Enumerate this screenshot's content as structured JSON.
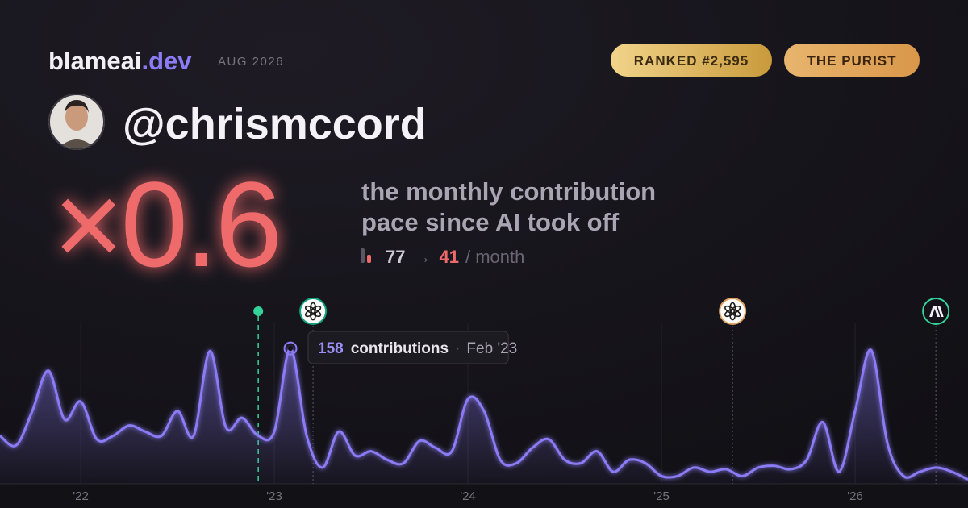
{
  "header": {
    "brand": "blameai",
    "brand_suffix": ".dev",
    "date": "AUG 2026",
    "badges": [
      "RANKED #2,595",
      "THE PURIST"
    ]
  },
  "profile": {
    "username": "@chrismccord"
  },
  "headline": {
    "multiplier": "×0.6",
    "description_lines": [
      "the monthly contribution",
      "pace since AI took off"
    ],
    "before": 77,
    "arrow": "→",
    "after": 41,
    "unit": "/ month"
  },
  "chart_data": {
    "type": "area",
    "color": "#8b7cf6",
    "x": [
      2021.583,
      2021.667,
      2021.75,
      2021.833,
      2021.917,
      2022,
      2022.083,
      2022.167,
      2022.25,
      2022.333,
      2022.417,
      2022.5,
      2022.583,
      2022.667,
      2022.75,
      2022.833,
      2022.917,
      2023,
      2023.083,
      2023.167,
      2023.25,
      2023.333,
      2023.417,
      2023.5,
      2023.583,
      2023.667,
      2023.75,
      2023.833,
      2023.917,
      2024,
      2024.083,
      2024.167,
      2024.25,
      2024.333,
      2024.417,
      2024.5,
      2024.583,
      2024.667,
      2024.75,
      2024.833,
      2024.917,
      2025,
      2025.083,
      2025.167,
      2025.25,
      2025.333,
      2025.417,
      2025.5,
      2025.583,
      2025.667,
      2025.75,
      2025.833,
      2025.917,
      2026,
      2026.083,
      2026.167,
      2026.25,
      2026.333,
      2026.417,
      2026.5,
      2026.583
    ],
    "series": [
      {
        "name": "contributions",
        "color": "#8b7cf6",
        "values": [
          56,
          45,
          85,
          132,
          75,
          96,
          52,
          56,
          68,
          61,
          56,
          85,
          56,
          155,
          66,
          77,
          56,
          61,
          158,
          56,
          19,
          61,
          33,
          38,
          28,
          24,
          50,
          42,
          38,
          99,
          85,
          28,
          24,
          42,
          52,
          28,
          24,
          38,
          14,
          28,
          24,
          9,
          9,
          19,
          14,
          17,
          9,
          19,
          21,
          17,
          28,
          72,
          14,
          85,
          156,
          47,
          9,
          14,
          19,
          14,
          5
        ]
      }
    ],
    "xlim": [
      2021.583,
      2026.583
    ],
    "xticks": [
      {
        "value": 2022,
        "label": "'22"
      },
      {
        "value": 2023,
        "label": "'23"
      },
      {
        "value": 2024,
        "label": "'24"
      },
      {
        "value": 2025,
        "label": "'25"
      },
      {
        "value": 2026,
        "label": "'26"
      }
    ],
    "ylim": [
      0,
      160
    ],
    "grid": true,
    "markers": [
      {
        "x": 2022.917,
        "color": "#34d399",
        "icon": "dot"
      },
      {
        "x": 2023.2,
        "color": "#10a37f",
        "icon": "openai"
      },
      {
        "x": 2025.367,
        "color": "#e0a060",
        "icon": "openai"
      },
      {
        "x": 2026.417,
        "color": "#34d399",
        "icon": "anthropic"
      }
    ],
    "tooltip": {
      "index": 18,
      "unit": "contributions",
      "label": "Feb '23"
    }
  }
}
